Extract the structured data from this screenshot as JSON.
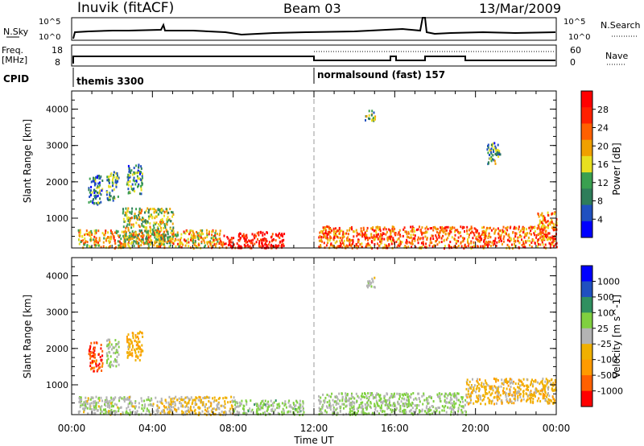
{
  "header": {
    "title": "Inuvik (fitACF)",
    "beam": "Beam 03",
    "date": "13/Mar/2009"
  },
  "noise_panel": {
    "left_label": "N.Sky",
    "right_label": "N.Search",
    "left_ticks": [
      "10^5",
      "10^0"
    ],
    "right_ticks": [
      "10^5",
      "10^0"
    ]
  },
  "freq_panel": {
    "left_label_1": "Freq.",
    "left_label_2": "[MHz]",
    "right_label": "Nave",
    "left_ticks": [
      "18",
      "8"
    ],
    "right_ticks": [
      "60",
      "0"
    ]
  },
  "cpid_panel": {
    "label": "CPID",
    "modes": [
      {
        "name": "themis 3300",
        "start_hour": 0
      },
      {
        "name": "normalsound (fast) 157",
        "start_hour": 12
      }
    ]
  },
  "time_axis": {
    "label": "Time UT",
    "ticks": [
      "00:00",
      "04:00",
      "08:00",
      "12:00",
      "16:00",
      "20:00",
      "00:00"
    ]
  },
  "colors": {
    "power_scale": [
      "#0000ff",
      "#2050c0",
      "#2e7d5a",
      "#3aa050",
      "#e8e020",
      "#f0a000",
      "#ff6000",
      "#ff2000",
      "#ff0000"
    ],
    "velocity_scale": [
      "#ff0000",
      "#ff6000",
      "#ff9a00",
      "#f0b000",
      "#b4b4b4",
      "#80d040",
      "#309060",
      "#2050c0",
      "#0000ff"
    ]
  },
  "chart_data": [
    {
      "type": "heatmap",
      "name": "power",
      "x_range_hours": [
        0,
        24
      ],
      "ylabel": "Slant Range [km]",
      "ylim": [
        180,
        4500
      ],
      "yticks": [
        1000,
        2000,
        3000,
        4000
      ],
      "colorbar": {
        "label": "Power [dB]",
        "ticks": [
          "4",
          "8",
          "12",
          "16",
          "20",
          "24",
          "28"
        ],
        "range": [
          0,
          30
        ]
      },
      "regions": [
        {
          "t": [
            0.3,
            7.5
          ],
          "r": [
            200,
            700
          ],
          "value": 18
        },
        {
          "t": [
            2.5,
            5.0
          ],
          "r": [
            300,
            1300
          ],
          "value": 14
        },
        {
          "t": [
            7.5,
            10.5
          ],
          "r": [
            200,
            650
          ],
          "value": 28
        },
        {
          "t": [
            0.8,
            1.5
          ],
          "r": [
            1400,
            2200
          ],
          "value": 8
        },
        {
          "t": [
            1.7,
            2.3
          ],
          "r": [
            1500,
            2300
          ],
          "value": 10
        },
        {
          "t": [
            2.7,
            3.5
          ],
          "r": [
            1700,
            2500
          ],
          "value": 9
        },
        {
          "t": [
            12.2,
            24.0
          ],
          "r": [
            200,
            800
          ],
          "value": 22
        },
        {
          "t": [
            14.5,
            15.0
          ],
          "r": [
            3700,
            4000
          ],
          "value": 12
        },
        {
          "t": [
            20.5,
            21.2
          ],
          "r": [
            2500,
            3100
          ],
          "value": 10
        },
        {
          "t": [
            23.0,
            24.0
          ],
          "r": [
            700,
            1200
          ],
          "value": 20
        }
      ]
    },
    {
      "type": "heatmap",
      "name": "velocity",
      "x_range_hours": [
        0,
        24
      ],
      "ylabel": "Slant Range [km]",
      "ylim": [
        180,
        4500
      ],
      "yticks": [
        1000,
        2000,
        3000,
        4000
      ],
      "colorbar": {
        "label": "Velocity [m s^-1]",
        "ticks": [
          "1000",
          "500",
          "100",
          "25",
          "-25",
          "-100",
          "-500",
          "-1000"
        ],
        "range": [
          -1000,
          1000
        ]
      },
      "regions": [
        {
          "t": [
            0.3,
            4.0
          ],
          "r": [
            200,
            700
          ],
          "value": 60
        },
        {
          "t": [
            4.0,
            8.0
          ],
          "r": [
            200,
            700
          ],
          "value": -150
        },
        {
          "t": [
            8.0,
            11.5
          ],
          "r": [
            200,
            600
          ],
          "value": 150
        },
        {
          "t": [
            0.8,
            1.5
          ],
          "r": [
            1400,
            2200
          ],
          "value": -700
        },
        {
          "t": [
            1.7,
            2.3
          ],
          "r": [
            1500,
            2300
          ],
          "value": 80
        },
        {
          "t": [
            2.7,
            3.5
          ],
          "r": [
            1700,
            2500
          ],
          "value": -300
        },
        {
          "t": [
            12.2,
            19.5
          ],
          "r": [
            200,
            800
          ],
          "value": 120
        },
        {
          "t": [
            19.5,
            24.0
          ],
          "r": [
            500,
            1200
          ],
          "value": -200
        },
        {
          "t": [
            14.5,
            15.0
          ],
          "r": [
            3700,
            4000
          ],
          "value": 0
        }
      ]
    }
  ]
}
